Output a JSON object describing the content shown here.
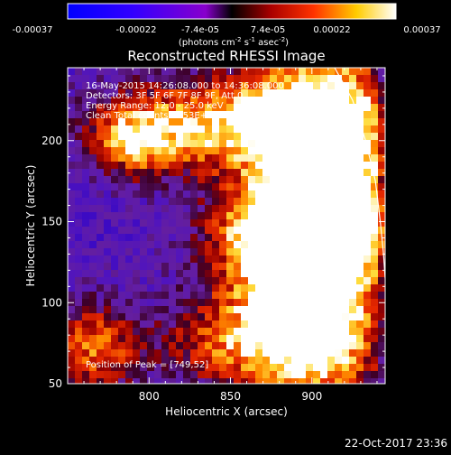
{
  "colorbar": {
    "ticks": [
      "-0.00037",
      "-0.00022",
      "-7.4e-05",
      "7.4e-05",
      "0.00022",
      "0.00037"
    ],
    "unit_base": "(photons cm",
    "unit_exp1": "-2",
    "unit_mid": " s",
    "unit_exp2": "-1",
    "unit_asec": " asec",
    "unit_exp3": "-2",
    "unit_close": ")",
    "range": [
      -0.00037,
      0.00037
    ]
  },
  "chart_data": {
    "type": "heatmap",
    "title": "Reconstructed RHESSI Image",
    "xlabel": "Heliocentric X (arcsec)",
    "ylabel": "Heliocentric Y (arcsec)",
    "xlim": [
      750,
      945
    ],
    "ylim": [
      50,
      245
    ],
    "x_ticks": [
      800,
      850,
      900
    ],
    "y_ticks": [
      50,
      100,
      150,
      200
    ],
    "x_tick_labels": [
      "800",
      "850",
      "900"
    ],
    "y_tick_labels": [
      "50",
      "100",
      "150",
      "200"
    ],
    "annotations": [
      "16-May-2015 14:26:08.000 to 14:36:08.000",
      "Detectors: 3F 5F 6F 7F 8F 9F, Att 0",
      "Energy Range: 12.0 - 25.0 keV",
      "Clean     Total counts: 1.53E+04"
    ],
    "peak_label": "Position of Peak = [749,52]",
    "limb_curve": [
      [
        914,
        245
      ],
      [
        925,
        225
      ],
      [
        933,
        200
      ],
      [
        939,
        175
      ],
      [
        942,
        150
      ],
      [
        944,
        130
      ],
      [
        945,
        115
      ]
    ],
    "colormap": "red-temperature (blue-purple negative, red-yellow-white positive)"
  },
  "footer": {
    "timestamp": "22-Oct-2017 23:36"
  }
}
